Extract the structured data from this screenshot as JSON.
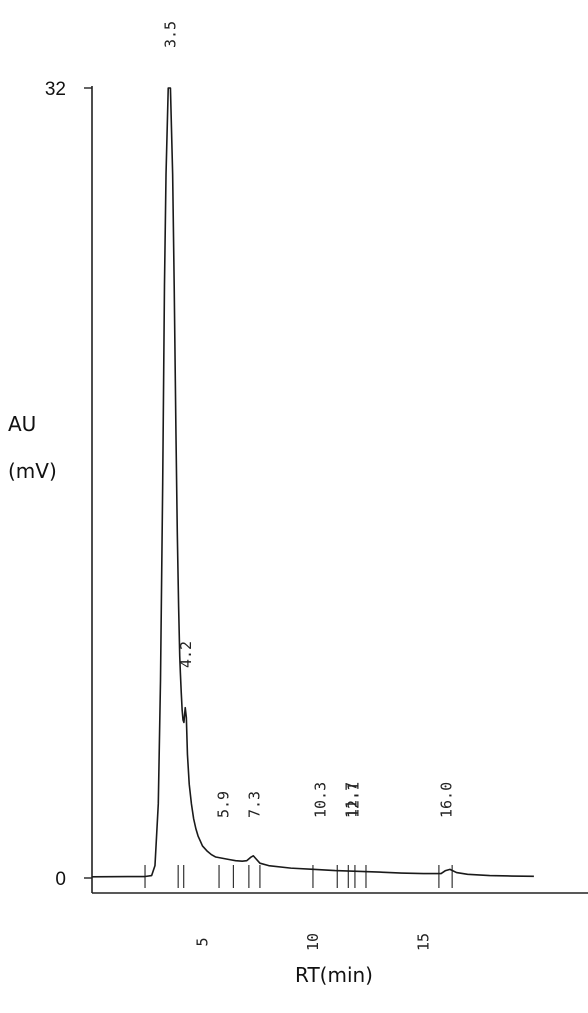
{
  "chart_data": {
    "type": "line",
    "title": "",
    "xlabel": "RT(min)",
    "ylabel_line1": "AU",
    "ylabel_line2": "(mV)",
    "xlim": [
      0,
      21
    ],
    "ylim": [
      0,
      32
    ],
    "x_ticks": [
      "5",
      "10",
      "15"
    ],
    "y_ticks": [
      "0",
      "32"
    ],
    "grid": false,
    "legend": "none",
    "colors": {
      "line": "#1a1a1a",
      "axis": "#222222"
    },
    "series": [
      {
        "x": [
          0,
          2.4,
          2.7,
          2.85,
          3.0,
          3.1,
          3.2,
          3.28,
          3.35,
          3.45,
          3.55,
          3.65,
          3.72,
          3.8,
          3.86,
          3.92,
          3.97,
          4.0,
          4.04,
          4.08,
          4.12,
          4.16,
          4.22,
          4.27,
          4.32,
          4.4,
          4.5,
          4.6,
          4.7,
          4.8,
          4.9,
          5.0,
          5.2,
          5.4,
          5.6,
          5.9,
          6.2,
          6.5,
          6.8,
          7.0,
          7.2,
          7.3,
          7.4,
          7.6,
          8.0,
          9.0,
          10.0,
          11.0,
          12.0,
          13.0,
          14.0,
          15.0,
          15.8,
          16.0,
          16.2,
          16.5,
          17.0,
          18.0,
          19.0,
          20.0
        ],
        "y": [
          0.05,
          0.06,
          0.1,
          0.5,
          3.0,
          8.0,
          16.0,
          24.0,
          28.5,
          32.0,
          32.0,
          28.5,
          24.0,
          18.0,
          14.0,
          11.0,
          9.0,
          8.3,
          7.5,
          6.8,
          6.4,
          6.3,
          6.9,
          6.5,
          5.0,
          3.8,
          3.0,
          2.4,
          2.0,
          1.7,
          1.5,
          1.3,
          1.1,
          0.95,
          0.85,
          0.8,
          0.75,
          0.7,
          0.68,
          0.7,
          0.85,
          0.9,
          0.8,
          0.6,
          0.5,
          0.4,
          0.35,
          0.3,
          0.27,
          0.24,
          0.2,
          0.18,
          0.18,
          0.3,
          0.35,
          0.22,
          0.15,
          0.1,
          0.08,
          0.07
        ]
      }
    ],
    "peak_labels": [
      {
        "x": 3.5,
        "text": "3.5",
        "y_label": 32
      },
      {
        "x": 4.2,
        "text": "4.2",
        "y_label": 9.7
      },
      {
        "x": 5.9,
        "text": "5.9",
        "y_label": 3.4
      },
      {
        "x": 7.3,
        "text": "7.3",
        "y_label": 3.4
      },
      {
        "x": 10.3,
        "text": "10.3",
        "y_label": 3.4
      },
      {
        "x": 11.7,
        "text": "11.7",
        "y_label": 3.4
      },
      {
        "x": 11.8,
        "text": "12.1",
        "y_label": 3.4
      },
      {
        "x": 16.0,
        "text": "16.0",
        "y_label": 3.4
      }
    ],
    "boundary_marks": [
      2.4,
      3.9,
      4.15,
      5.75,
      6.4,
      7.1,
      7.6,
      10.0,
      11.1,
      11.6,
      11.9,
      12.4,
      15.7,
      16.3
    ]
  }
}
